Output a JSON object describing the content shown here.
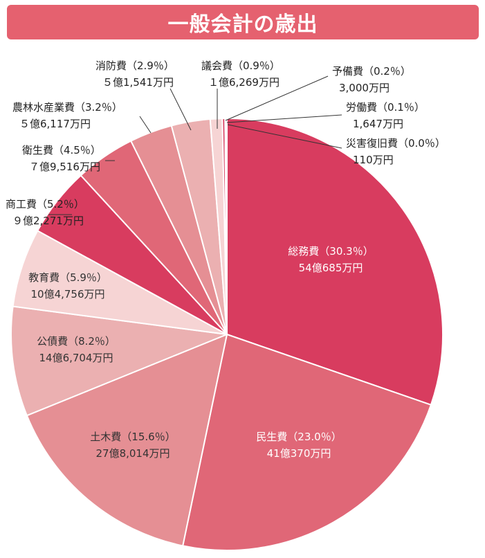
{
  "title": "一般会計の歳出",
  "chart_data": {
    "type": "pie",
    "slices": [
      {
        "name": "総務費",
        "percent": "（30.3％）",
        "value": 30.3,
        "amount": "54億685万円",
        "color": "#d83c5f"
      },
      {
        "name": "民生費",
        "percent": "（23.0％）",
        "value": 23.0,
        "amount": "41億370万円",
        "color": "#e06777"
      },
      {
        "name": "土木費",
        "percent": "（15.6％）",
        "value": 15.6,
        "amount": "27億8,014万円",
        "color": "#e58f94"
      },
      {
        "name": "公債費",
        "percent": "（8.2％）",
        "value": 8.2,
        "amount": "14億6,704万円",
        "color": "#ebb0b1"
      },
      {
        "name": "教育費",
        "percent": "（5.9％）",
        "value": 5.9,
        "amount": "10億4,756万円",
        "color": "#f6d4d4"
      },
      {
        "name": "商工費",
        "percent": "（5.2％）",
        "value": 5.2,
        "amount": "９億2,271万円",
        "color": "#d83c5f"
      },
      {
        "name": "衛生費",
        "percent": "（4.5％）",
        "value": 4.5,
        "amount": "７億9,516万円",
        "color": "#e06777"
      },
      {
        "name": "農林水産業費",
        "percent": "（3.2％）",
        "value": 3.2,
        "amount": "５億6,117万円",
        "color": "#e58f94"
      },
      {
        "name": "消防費",
        "percent": "（2.9％）",
        "value": 2.9,
        "amount": "５億1,541万円",
        "color": "#ebb0b1"
      },
      {
        "name": "議会費",
        "percent": "（0.9％）",
        "value": 0.9,
        "amount": "１億6,269万円",
        "color": "#f6d4d4"
      },
      {
        "name": "予備費",
        "percent": "（0.2％）",
        "value": 0.2,
        "amount": "3,000万円",
        "color": "#d83c5f"
      },
      {
        "name": "労働費",
        "percent": "（0.1％）",
        "value": 0.1,
        "amount": "1,647万円",
        "color": "#e06777"
      },
      {
        "name": "災害復旧費",
        "percent": "（0.0％）",
        "value": 0.04,
        "amount": "110万円",
        "color": "#e58f94"
      }
    ]
  }
}
